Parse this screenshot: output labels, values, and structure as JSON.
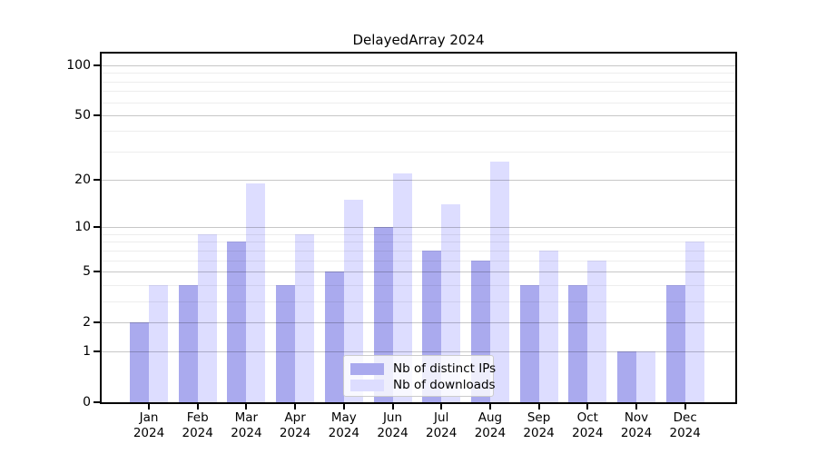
{
  "chart_data": {
    "type": "bar",
    "title": "DelayedArray 2024",
    "categories": [
      "Jan",
      "Feb",
      "Mar",
      "Apr",
      "May",
      "Jun",
      "Jul",
      "Aug",
      "Sep",
      "Oct",
      "Nov",
      "Dec"
    ],
    "category_second_line": "2024",
    "series": [
      {
        "name": "Nb of distinct IPs",
        "color": "#aaaaee",
        "values": [
          2,
          4,
          8,
          4,
          5,
          10,
          7,
          6,
          4,
          4,
          1,
          4
        ]
      },
      {
        "name": "Nb of downloads",
        "color": "#ddddff",
        "values": [
          4,
          9,
          19,
          9,
          15,
          22,
          14,
          26,
          7,
          6,
          1,
          8
        ]
      }
    ],
    "xlabel": "",
    "ylabel": "",
    "y_scale": "log1p",
    "y_axis_max": 117.6,
    "y_ticks_labeled": [
      0,
      1,
      2,
      5,
      10,
      20,
      50,
      100
    ],
    "y_gridlines_major": [
      1,
      2,
      5,
      10,
      20,
      50,
      100
    ],
    "y_gridlines_minor": [
      3,
      4,
      6,
      7,
      8,
      9,
      30,
      40,
      60,
      70,
      80,
      90
    ],
    "grid": "horizontal",
    "legend_position": "lower-center-inside",
    "colors": {
      "axis": "#000000",
      "grid_major": "#c6c6c6",
      "grid_minor": "#ececec",
      "background": "#ffffff"
    }
  }
}
